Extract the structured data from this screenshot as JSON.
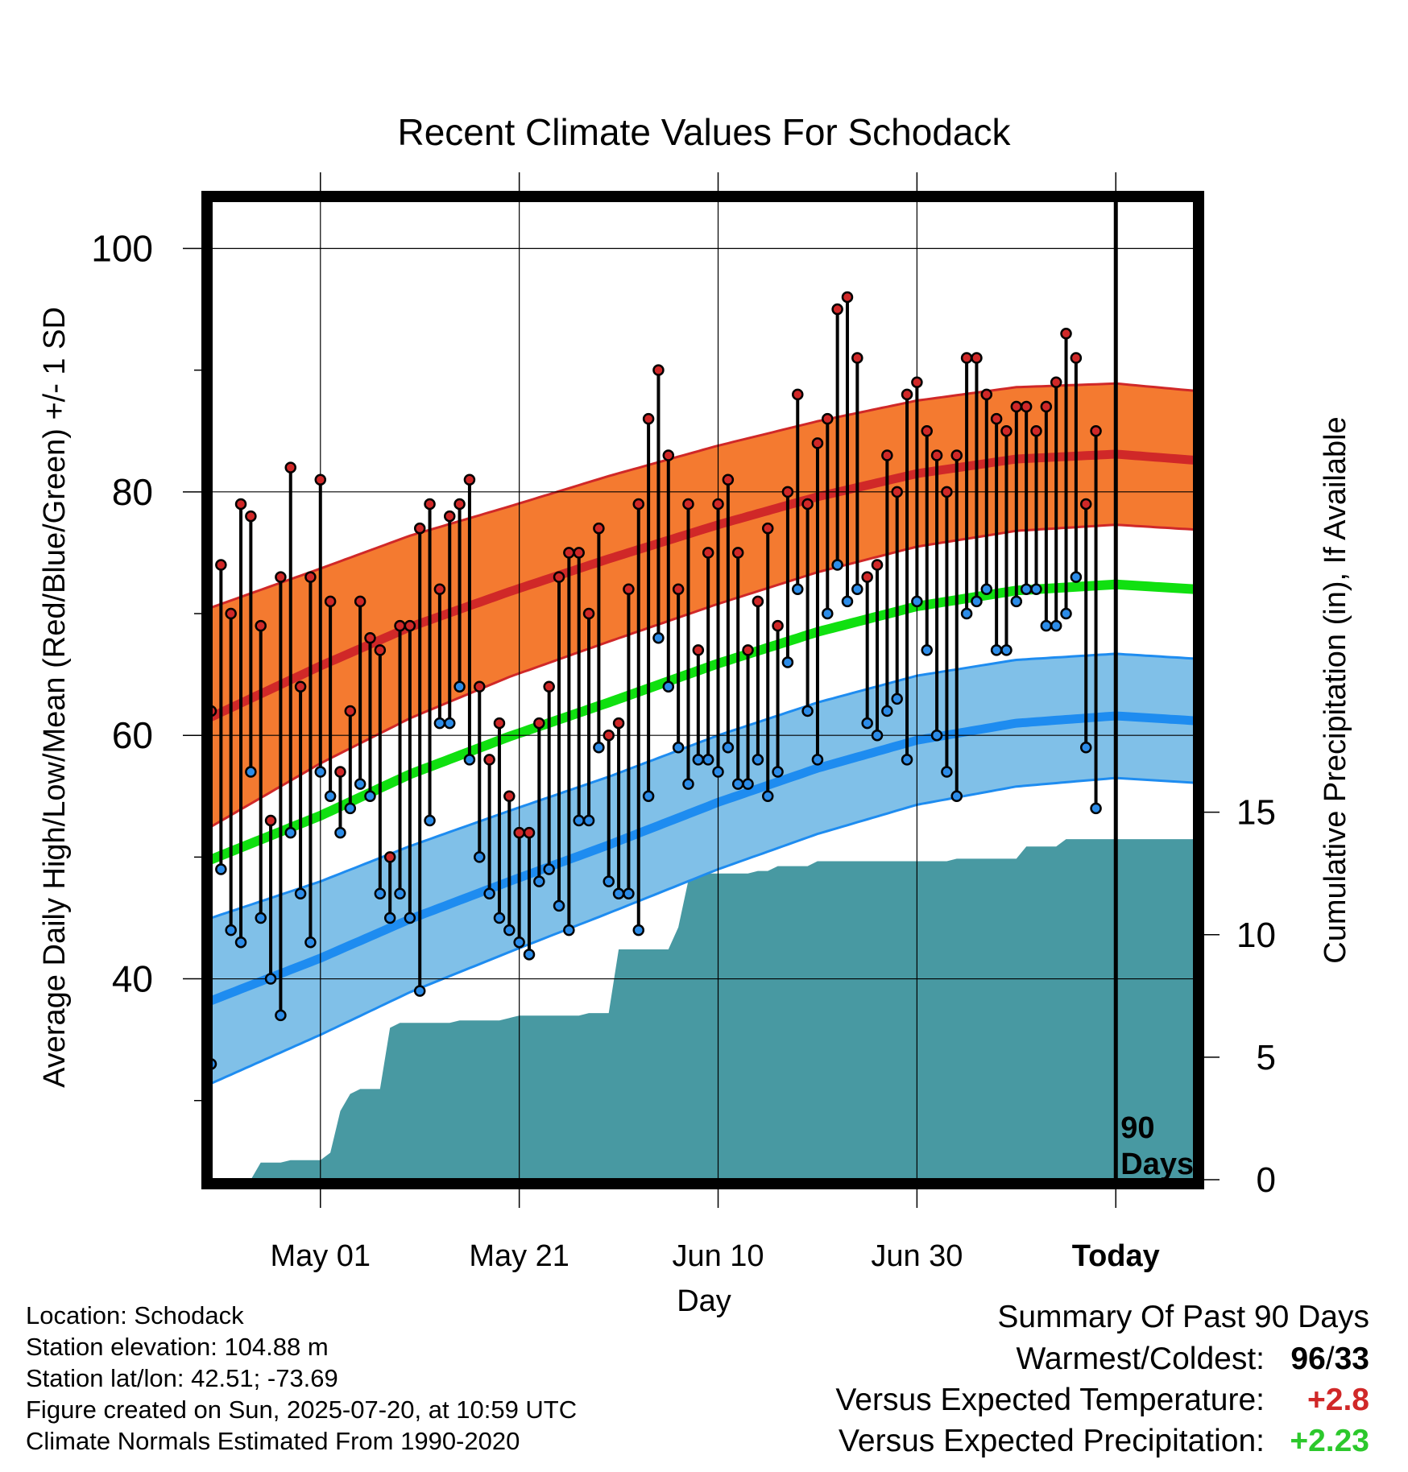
{
  "chart_data": {
    "type": "line",
    "title": "Recent Climate Values For Schodack",
    "xlabel": "Day",
    "ylabel": "Average Daily High/Low/Mean (Red/Blue/Green) +/- 1 SD",
    "ylabel_right": "Cumulative Precipitation (in), If Available",
    "x_start": "2025-04-20",
    "x_end": "2025-07-28",
    "today": "2025-07-20",
    "today_label_lines": [
      "90",
      "Days"
    ],
    "ylim": [
      23.5,
      104
    ],
    "yticks": [
      40,
      60,
      80,
      100
    ],
    "y2lim": [
      0,
      40
    ],
    "y2ticks": [
      0,
      5,
      10,
      15
    ],
    "xticks": [
      {
        "date": "2025-05-01",
        "label": "May 01"
      },
      {
        "date": "2025-05-21",
        "label": "May 21"
      },
      {
        "date": "2025-06-10",
        "label": "Jun 10"
      },
      {
        "date": "2025-06-30",
        "label": "Jun 30"
      },
      {
        "date": "2025-07-20",
        "label": "Today"
      }
    ],
    "grid": true,
    "colors": {
      "high_band": "#f47a30",
      "high_line": "#d02828",
      "low_band": "#80c0e8",
      "low_line": "#1e8cf0",
      "mean_line": "#10e010",
      "precip": "#4899a2",
      "high_dot": "#d02828",
      "low_dot": "#2c8ce8"
    },
    "normals": {
      "dates": [
        "2025-04-20",
        "2025-05-01",
        "2025-05-10",
        "2025-05-20",
        "2025-05-30",
        "2025-06-10",
        "2025-06-20",
        "2025-06-30",
        "2025-07-10",
        "2025-07-20",
        "2025-07-28"
      ],
      "high": [
        61.5,
        65.7,
        68.9,
        71.8,
        74.5,
        77.3,
        79.6,
        81.5,
        82.7,
        83.1,
        82.6
      ],
      "high_sd": [
        9.0,
        8.0,
        7.5,
        7.0,
        6.8,
        6.5,
        6.2,
        6.0,
        5.9,
        5.8,
        5.7
      ],
      "low": [
        38.2,
        41.7,
        44.9,
        48.0,
        51.0,
        54.5,
        57.3,
        59.6,
        61.0,
        61.6,
        61.2
      ],
      "low_sd": [
        6.8,
        6.3,
        6.0,
        5.8,
        5.6,
        5.5,
        5.4,
        5.3,
        5.2,
        5.1,
        5.1
      ],
      "mean": [
        49.8,
        53.4,
        56.8,
        59.9,
        62.7,
        65.9,
        68.5,
        70.6,
        71.9,
        72.4,
        72.0
      ]
    },
    "observations": {
      "start_date": "2025-04-20",
      "high": [
        62,
        74,
        70,
        79,
        78,
        69,
        53,
        73,
        82,
        64,
        73,
        81,
        71,
        57,
        62,
        71,
        68,
        67,
        50,
        69,
        69,
        77,
        79,
        72,
        78,
        79,
        81,
        64,
        58,
        61,
        55,
        52,
        52,
        61,
        64,
        73,
        75,
        75,
        70,
        77,
        60,
        61,
        72,
        79,
        86,
        90,
        83,
        72,
        79,
        67,
        75,
        79,
        81,
        75,
        67,
        71,
        77,
        69,
        80,
        88,
        79,
        84,
        86,
        95,
        96,
        91,
        73,
        74,
        83,
        80,
        88,
        89,
        85,
        83,
        80,
        83,
        91,
        91,
        88,
        86,
        85,
        87,
        87,
        85,
        87,
        89,
        93,
        91,
        79,
        85
      ],
      "low": [
        33,
        49,
        44,
        43,
        57,
        45,
        40,
        37,
        52,
        47,
        43,
        57,
        55,
        52,
        54,
        56,
        55,
        47,
        45,
        47,
        45,
        39,
        53,
        61,
        61,
        64,
        58,
        50,
        47,
        45,
        44,
        43,
        42,
        48,
        49,
        46,
        44,
        53,
        53,
        59,
        48,
        47,
        47,
        44,
        55,
        68,
        64,
        59,
        56,
        58,
        58,
        57,
        59,
        56,
        56,
        58,
        55,
        57,
        66,
        72,
        62,
        58,
        70,
        74,
        71,
        72,
        61,
        60,
        62,
        63,
        58,
        71,
        67,
        60,
        57,
        55,
        70,
        71,
        72,
        67,
        67,
        71,
        72,
        72,
        69,
        69,
        70,
        73,
        59,
        54
      ]
    },
    "precip_cumulative": {
      "start_date": "2025-04-20",
      "values": [
        0,
        0,
        0,
        0,
        0,
        0.7,
        0.7,
        0.7,
        0.8,
        0.8,
        0.8,
        0.8,
        1.1,
        2.8,
        3.5,
        3.7,
        3.7,
        3.7,
        6.2,
        6.4,
        6.4,
        6.4,
        6.4,
        6.4,
        6.4,
        6.5,
        6.5,
        6.5,
        6.5,
        6.5,
        6.6,
        6.7,
        6.7,
        6.7,
        6.7,
        6.7,
        6.7,
        6.7,
        6.8,
        6.8,
        6.8,
        9.4,
        9.4,
        9.4,
        9.4,
        9.4,
        9.4,
        10.3,
        12.2,
        12.3,
        12.5,
        12.5,
        12.5,
        12.5,
        12.5,
        12.6,
        12.6,
        12.8,
        12.8,
        12.8,
        12.8,
        13.0,
        13.0,
        13.0,
        13.0,
        13.0,
        13.0,
        13.0,
        13.0,
        13.0,
        13.0,
        13.0,
        13.0,
        13.0,
        13.0,
        13.1,
        13.1,
        13.1,
        13.1,
        13.1,
        13.1,
        13.1,
        13.6,
        13.6,
        13.6,
        13.6,
        13.9,
        13.9,
        13.9,
        13.9,
        13.9,
        13.9,
        13.9,
        13.9,
        13.9,
        13.9,
        13.9,
        13.9,
        13.9,
        13.9
      ]
    }
  },
  "info": {
    "lines": [
      "Location: Schodack",
      "Station elevation: 104.88 m",
      "Station lat/lon: 42.51; -73.69",
      "Figure created on Sun, 2025-07-20, at 10:59 UTC",
      "Climate Normals Estimated From 1990-2020"
    ]
  },
  "summary": {
    "title": "Summary Of Past 90 Days",
    "rows": [
      {
        "label": "Warmest/Coldest:",
        "value_a": "96",
        "sep": "/",
        "value_b": "33",
        "color": "#000000"
      },
      {
        "label": "Versus Expected Temperature:",
        "value": "+2.8",
        "color": "#d02828"
      },
      {
        "label": "Versus Expected Precipitation:",
        "value": "+2.23",
        "color": "#2cc82c"
      }
    ]
  }
}
